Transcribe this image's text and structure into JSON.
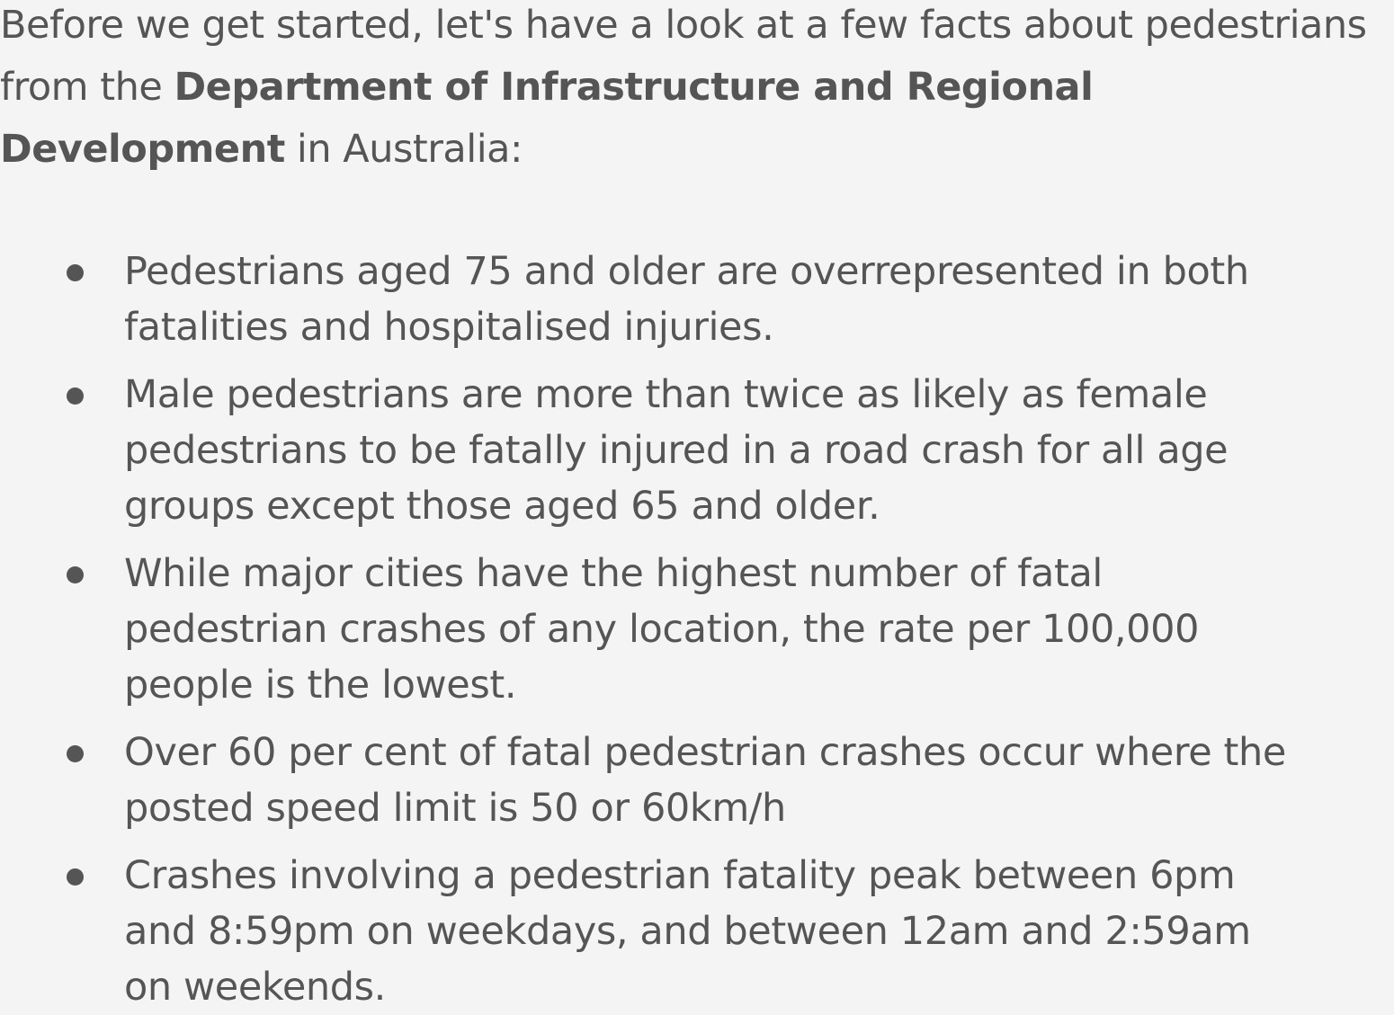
{
  "intro": {
    "before_bold": "Before we get started, let's have a look at a few facts about pedestrians from the ",
    "bold_org": "Department of Infrastructure and Regional Development",
    "after_bold": " in Australia:"
  },
  "facts": [
    "Pedestrians aged 75 and older are overrepresented in both fatalities and hospitalised injuries.",
    "Male pedestrians are more than twice as likely as female pedestrians to be fatally injured in a road crash for all age groups except those aged 65 and older.",
    "While major cities have the highest number of fatal pedestrian crashes of any location, the rate per 100,000 people is the lowest.",
    "Over 60 per cent of fatal pedestrian crashes occur where the posted speed limit is 50 or 60km/h",
    "Crashes involving a pedestrian fatality peak between 6pm and 8:59pm on weekdays, and between 12am and 2:59am on weekends."
  ]
}
